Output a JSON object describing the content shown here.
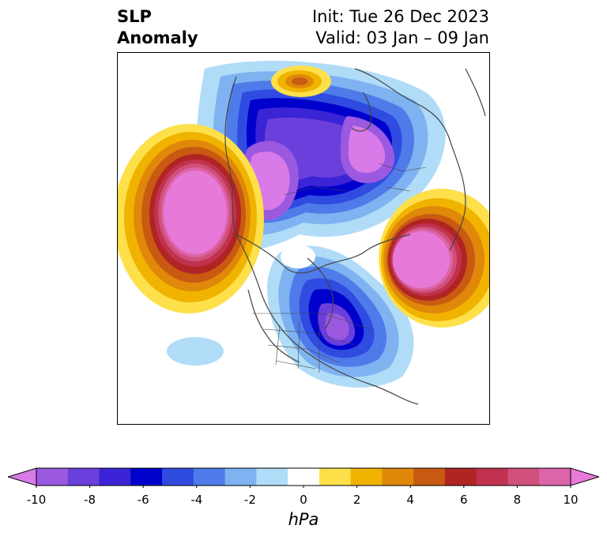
{
  "title": {
    "left_line1": "SLP",
    "left_line2": "Anomaly",
    "right_line1": "Init: Tue 26 Dec 2023",
    "right_line2": "Valid: 03 Jan – 09 Jan"
  },
  "map": {
    "projection": "north-polar-stereographic",
    "features": [
      {
        "name": "positive-anomaly-north-pacific",
        "sign": "positive",
        "peak_hpa": 10
      },
      {
        "name": "negative-anomaly-arctic-siberia",
        "sign": "negative",
        "peak_hpa": -10
      },
      {
        "name": "negative-anomaly-eastern-canada",
        "sign": "negative",
        "peak_hpa": -8
      },
      {
        "name": "positive-anomaly-northwest-europe",
        "sign": "positive",
        "peak_hpa": 10
      },
      {
        "name": "positive-anomaly-north-central-arctic",
        "sign": "positive",
        "peak_hpa": 6
      }
    ]
  },
  "colorbar": {
    "unit": "hPa",
    "tick_labels": [
      "-10",
      "-8",
      "-6",
      "-4",
      "-2",
      "0",
      "2",
      "4",
      "6",
      "8",
      "10"
    ],
    "colors": [
      "#d97ae8",
      "#9b59e0",
      "#6a3fdc",
      "#3b23d6",
      "#0000cc",
      "#2f4be0",
      "#4f7bea",
      "#7fb2f0",
      "#b0dcf8",
      "#ffffff",
      "#fde04a",
      "#f0b300",
      "#e0880a",
      "#c85a12",
      "#b02424",
      "#c0324e",
      "#d0507a",
      "#dc64a8",
      "#e77ad8"
    ]
  }
}
